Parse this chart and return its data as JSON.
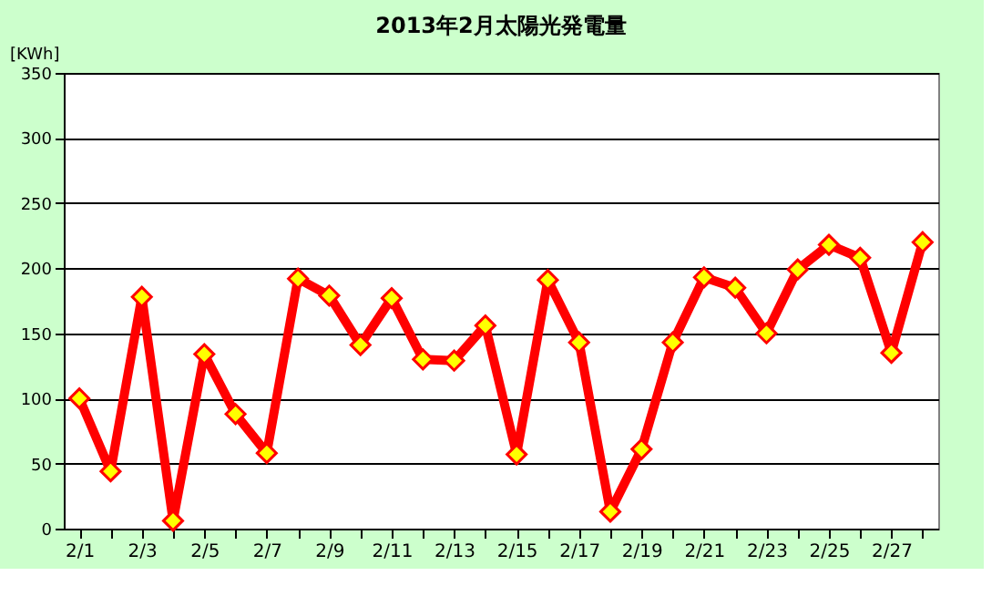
{
  "chart_data": {
    "type": "line",
    "title": "2013年2月太陽光発電量",
    "ylabel": "[KWh]",
    "categories": [
      "2/1",
      null,
      "2/3",
      null,
      "2/5",
      null,
      "2/7",
      null,
      "2/9",
      null,
      "2/11",
      null,
      "2/13",
      null,
      "2/15",
      null,
      "2/17",
      null,
      "2/19",
      null,
      "2/21",
      null,
      "2/23",
      null,
      "2/25",
      null,
      "2/27",
      null
    ],
    "series": [
      {
        "color": "#ff0000",
        "values": [
          100,
          44,
          178,
          6,
          134,
          88,
          58,
          192,
          179,
          141,
          177,
          130,
          129,
          156,
          57,
          191,
          143,
          13,
          61,
          143,
          193,
          185,
          150,
          199,
          218,
          208,
          135,
          220
        ]
      }
    ],
    "ylim": [
      0,
      350
    ],
    "yticks": [
      0,
      50,
      100,
      150,
      200,
      250,
      300,
      350
    ],
    "grid": "y",
    "marker": "diamond",
    "line_style": "solid"
  }
}
